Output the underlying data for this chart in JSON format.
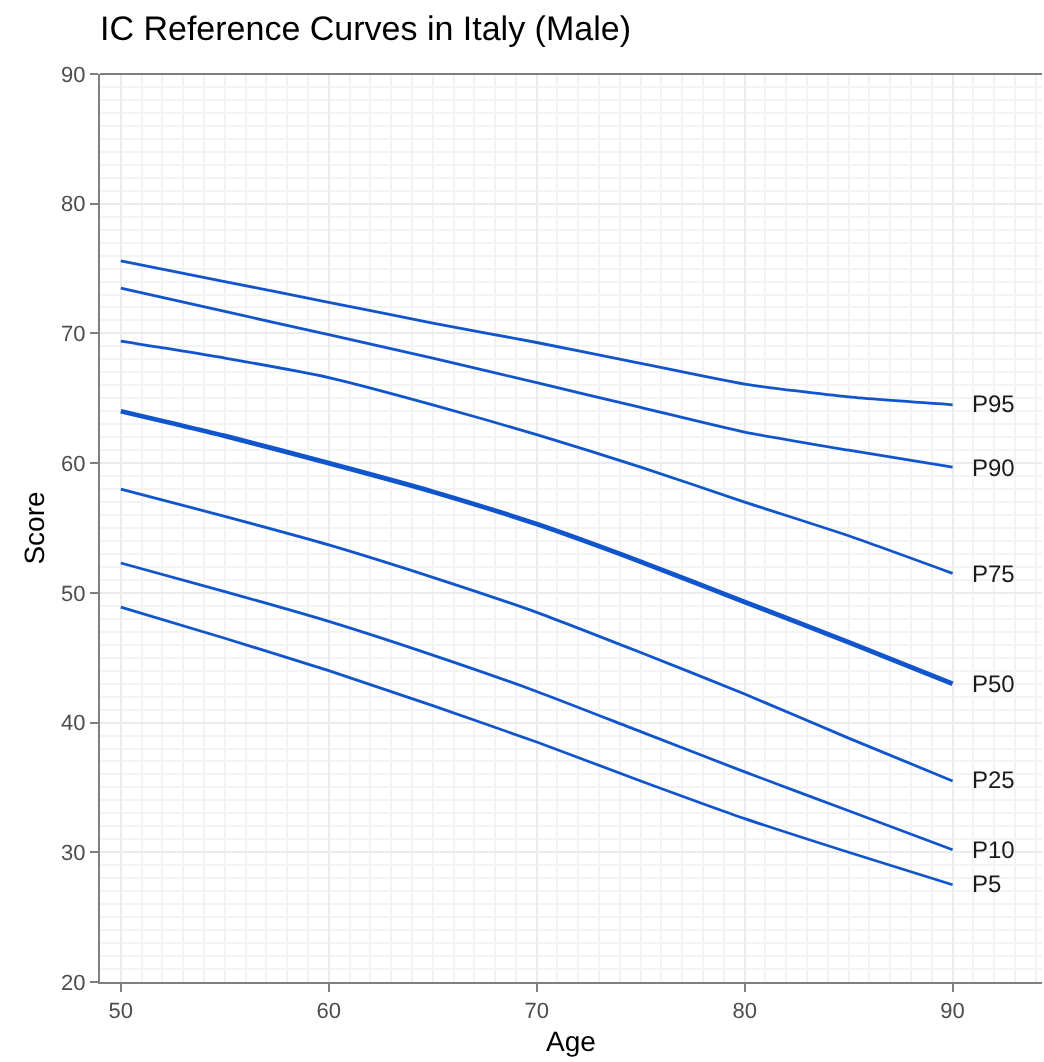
{
  "chart_data": {
    "type": "line",
    "title": "IC Reference Curves in Italy (Male)",
    "xlabel": "Age",
    "ylabel": "Score",
    "x": [
      50,
      55,
      60,
      65,
      70,
      75,
      80,
      85,
      90
    ],
    "series": [
      {
        "name": "P95",
        "color": "#1155cc",
        "values": [
          75.6,
          74.0,
          72.4,
          70.8,
          69.3,
          67.7,
          66.1,
          65.1,
          64.5
        ]
      },
      {
        "name": "P90",
        "color": "#1155cc",
        "values": [
          73.5,
          71.7,
          69.9,
          68.1,
          66.2,
          64.3,
          62.4,
          61.0,
          59.7
        ]
      },
      {
        "name": "P75",
        "color": "#1155cc",
        "values": [
          69.4,
          68.1,
          66.6,
          64.5,
          62.2,
          59.7,
          57.0,
          54.4,
          51.5
        ]
      },
      {
        "name": "P50",
        "color": "#1155cc",
        "values": [
          64.0,
          62.1,
          60.0,
          57.8,
          55.3,
          52.4,
          49.3,
          46.2,
          43.0
        ]
      },
      {
        "name": "P25",
        "color": "#1155cc",
        "values": [
          58.0,
          55.9,
          53.7,
          51.2,
          48.5,
          45.4,
          42.2,
          38.8,
          35.5
        ]
      },
      {
        "name": "P10",
        "color": "#1155cc",
        "values": [
          52.3,
          50.1,
          47.8,
          45.2,
          42.4,
          39.3,
          36.2,
          33.2,
          30.2
        ]
      },
      {
        "name": "P5",
        "color": "#1155cc",
        "values": [
          48.9,
          46.5,
          44.0,
          41.3,
          38.5,
          35.5,
          32.6,
          30.0,
          27.5
        ]
      }
    ],
    "xlim": [
      49,
      94.3
    ],
    "xticks": [
      50,
      60,
      70,
      80,
      90
    ],
    "ylim": [
      20,
      90
    ],
    "yticks": [
      20,
      30,
      40,
      50,
      60,
      70,
      80,
      90
    ],
    "grid": true,
    "legend": false,
    "line_style": "solid",
    "marker": "none"
  }
}
